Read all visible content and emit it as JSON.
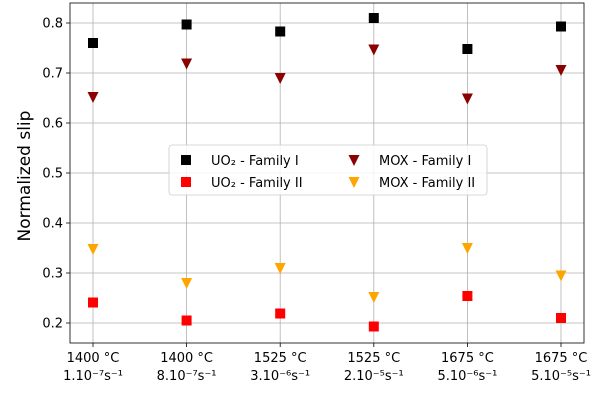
{
  "chart_data": {
    "type": "scatter",
    "ylabel": "Normalized slip",
    "ylim": [
      0.16,
      0.84
    ],
    "yticks": [
      0.2,
      0.3,
      0.4,
      0.5,
      0.6,
      0.7,
      0.8
    ],
    "grid": true,
    "legend_position": "center",
    "categories": [
      {
        "temp": "1400 °C",
        "rate": "1.10⁻⁷s⁻¹"
      },
      {
        "temp": "1400 °C",
        "rate": "8.10⁻⁷s⁻¹"
      },
      {
        "temp": "1525 °C",
        "rate": "3.10⁻⁶s⁻¹"
      },
      {
        "temp": "1525 °C",
        "rate": "2.10⁻⁵s⁻¹"
      },
      {
        "temp": "1675 °C",
        "rate": "5.10⁻⁶s⁻¹"
      },
      {
        "temp": "1675 °C",
        "rate": "5.10⁻⁵s⁻¹"
      }
    ],
    "series": [
      {
        "name": "UO₂ - Family I",
        "marker": "square",
        "color": "#000000",
        "values": [
          0.76,
          0.797,
          0.783,
          0.81,
          0.748,
          0.793
        ]
      },
      {
        "name": "UO₂ - Family II",
        "marker": "square",
        "color": "#ff0000",
        "values": [
          0.241,
          0.205,
          0.219,
          0.193,
          0.254,
          0.21
        ]
      },
      {
        "name": "MOX - Family I",
        "marker": "triangle-down",
        "color": "#8b0000",
        "values": [
          0.652,
          0.719,
          0.69,
          0.747,
          0.649,
          0.706
        ]
      },
      {
        "name": "MOX - Family II",
        "marker": "triangle-down",
        "color": "#ffa500",
        "values": [
          0.348,
          0.28,
          0.31,
          0.252,
          0.35,
          0.295
        ]
      }
    ]
  }
}
